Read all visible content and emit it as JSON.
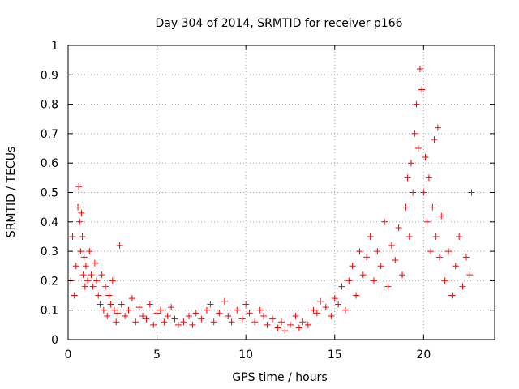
{
  "chart_data": {
    "type": "scatter",
    "title": "Day 304 of 2014, SRMTID for receiver p166",
    "xlabel": "GPS time / hours",
    "ylabel": "SRMTID / TECUs",
    "xlim": [
      0,
      24
    ],
    "ylim": [
      0,
      1
    ],
    "xticks": [
      0,
      5,
      10,
      15,
      20
    ],
    "xtick_labels": [
      "0",
      "5",
      "10",
      "15",
      "20"
    ],
    "yticks": [
      0,
      0.1,
      0.2,
      0.3,
      0.4,
      0.5,
      0.6,
      0.7,
      0.8,
      0.9,
      1
    ],
    "ytick_labels": [
      "0",
      "0.1",
      "0.2",
      "0.3",
      "0.4",
      "0.5",
      "0.6",
      "0.7",
      "0.8",
      "0.9",
      "1"
    ],
    "grid": true,
    "marker": "+",
    "color": "#ff0000",
    "series": [
      {
        "name": "SRMTID",
        "x": [
          0.15,
          0.25,
          0.35,
          0.45,
          0.55,
          0.6,
          0.65,
          0.7,
          0.75,
          0.8,
          0.85,
          0.9,
          0.95,
          1.0,
          1.1,
          1.2,
          1.3,
          1.4,
          1.5,
          1.6,
          1.7,
          1.8,
          1.9,
          2.0,
          2.1,
          2.2,
          2.3,
          2.4,
          2.5,
          2.6,
          2.7,
          2.8,
          2.9,
          3.0,
          3.2,
          3.4,
          3.6,
          3.8,
          4.0,
          4.2,
          4.4,
          4.6,
          4.8,
          5.0,
          5.2,
          5.4,
          5.6,
          5.8,
          6.0,
          6.2,
          6.5,
          6.8,
          7.0,
          7.2,
          7.5,
          7.8,
          8.0,
          8.2,
          8.5,
          8.8,
          9.0,
          9.2,
          9.5,
          9.8,
          10.0,
          10.2,
          10.5,
          10.8,
          11.0,
          11.2,
          11.5,
          11.8,
          12.0,
          12.2,
          12.5,
          12.8,
          13.0,
          13.2,
          13.5,
          13.8,
          14.0,
          14.2,
          14.5,
          14.8,
          15.0,
          15.2,
          15.4,
          15.6,
          15.8,
          16.0,
          16.2,
          16.4,
          16.6,
          16.8,
          17.0,
          17.2,
          17.4,
          17.6,
          17.8,
          18.0,
          18.2,
          18.4,
          18.6,
          18.8,
          19.0,
          19.1,
          19.2,
          19.3,
          19.4,
          19.5,
          19.6,
          19.7,
          19.8,
          19.9,
          20.0,
          20.1,
          20.2,
          20.3,
          20.4,
          20.5,
          20.6,
          20.7,
          20.8,
          20.9,
          21.0,
          21.2,
          21.4,
          21.6,
          21.8,
          22.0,
          22.2,
          22.4,
          22.6,
          22.7
        ],
        "y": [
          0.2,
          0.35,
          0.15,
          0.25,
          0.45,
          0.52,
          0.4,
          0.3,
          0.43,
          0.35,
          0.22,
          0.28,
          0.18,
          0.25,
          0.2,
          0.3,
          0.22,
          0.18,
          0.26,
          0.2,
          0.15,
          0.12,
          0.22,
          0.1,
          0.18,
          0.08,
          0.15,
          0.12,
          0.2,
          0.1,
          0.06,
          0.09,
          0.32,
          0.12,
          0.08,
          0.1,
          0.14,
          0.06,
          0.11,
          0.08,
          0.07,
          0.12,
          0.05,
          0.09,
          0.1,
          0.06,
          0.08,
          0.11,
          0.07,
          0.05,
          0.06,
          0.08,
          0.05,
          0.09,
          0.07,
          0.1,
          0.12,
          0.06,
          0.09,
          0.13,
          0.08,
          0.06,
          0.1,
          0.07,
          0.12,
          0.09,
          0.06,
          0.1,
          0.08,
          0.05,
          0.07,
          0.04,
          0.06,
          0.03,
          0.05,
          0.08,
          0.04,
          0.06,
          0.05,
          0.1,
          0.09,
          0.13,
          0.11,
          0.08,
          0.14,
          0.12,
          0.18,
          0.1,
          0.2,
          0.25,
          0.15,
          0.3,
          0.22,
          0.28,
          0.35,
          0.2,
          0.3,
          0.25,
          0.4,
          0.18,
          0.32,
          0.27,
          0.38,
          0.22,
          0.45,
          0.55,
          0.35,
          0.6,
          0.5,
          0.7,
          0.8,
          0.65,
          0.92,
          0.85,
          0.5,
          0.62,
          0.4,
          0.55,
          0.3,
          0.45,
          0.68,
          0.35,
          0.72,
          0.28,
          0.42,
          0.2,
          0.3,
          0.15,
          0.25,
          0.35,
          0.18,
          0.28,
          0.22,
          0.5
        ]
      }
    ]
  }
}
